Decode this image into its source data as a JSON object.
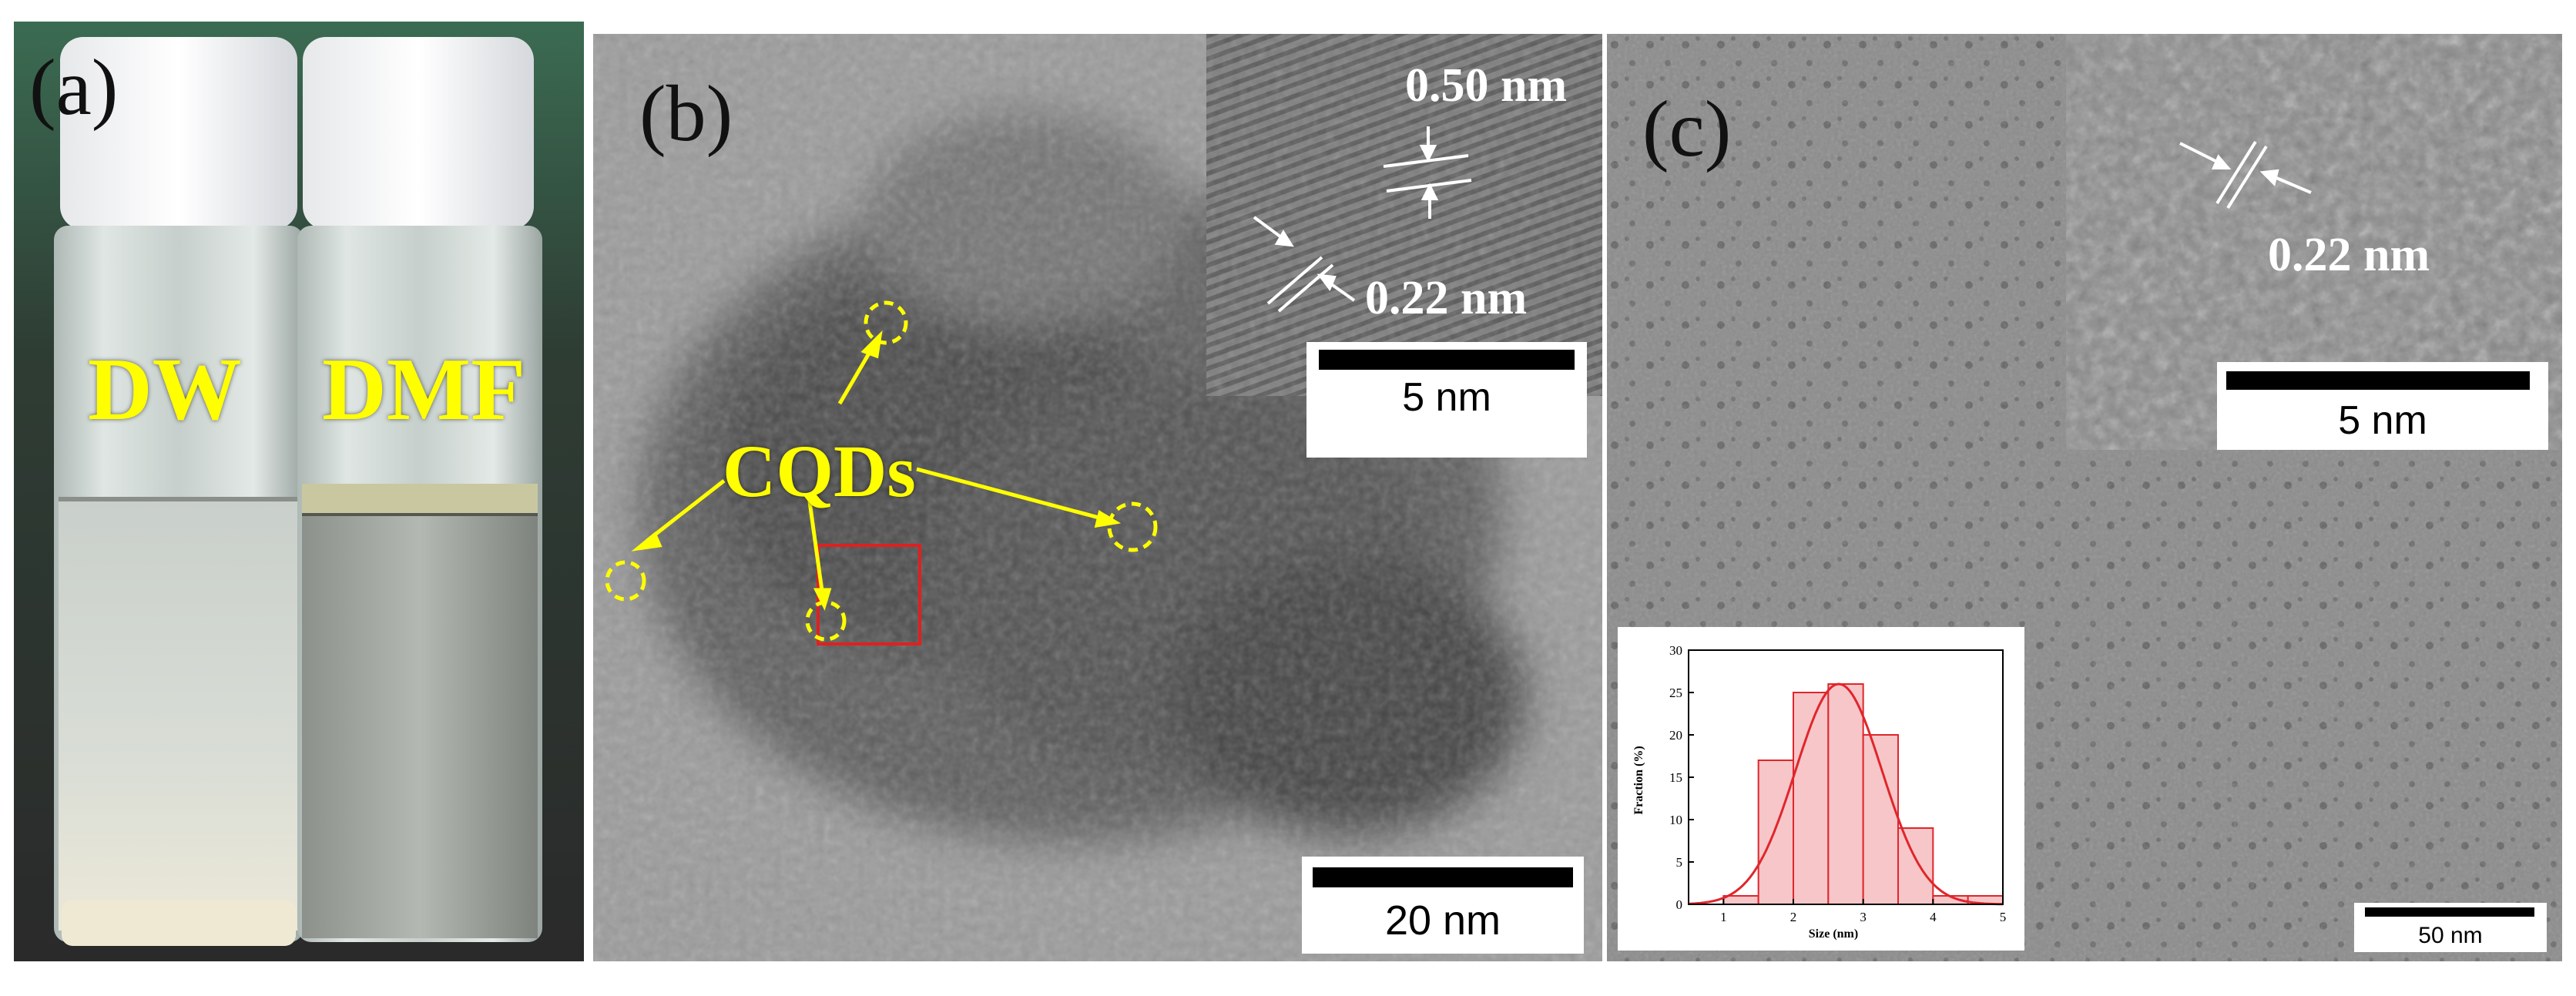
{
  "panel_a": {
    "label": "(a)",
    "vial_left": "DW",
    "vial_right": "DMF"
  },
  "panel_b": {
    "label": "(b)",
    "cqd_label": "CQDs",
    "inset_spacing_top": "0.50 nm",
    "inset_spacing_bottom": "0.22 nm",
    "inset_scalebar": "5 nm",
    "scalebar": "20 nm"
  },
  "panel_c": {
    "label": "(c)",
    "inset_spacing": "0.22 nm",
    "inset_scalebar": "5 nm",
    "scalebar": "50 nm"
  },
  "chart_data": {
    "type": "bar",
    "xlabel": "Size (nm)",
    "ylabel": "Fraction (%)",
    "xlim": [
      0.5,
      5
    ],
    "ylim": [
      0,
      30
    ],
    "xticks": [
      "1",
      "2",
      "3",
      "4",
      "5"
    ],
    "yticks": [
      "0",
      "5",
      "10",
      "15",
      "20",
      "25",
      "30"
    ],
    "bins": [
      {
        "x0": 1.0,
        "x1": 1.5,
        "value": 1
      },
      {
        "x0": 1.5,
        "x1": 2.0,
        "value": 17
      },
      {
        "x0": 2.0,
        "x1": 2.5,
        "value": 25
      },
      {
        "x0": 2.5,
        "x1": 3.0,
        "value": 26
      },
      {
        "x0": 3.0,
        "x1": 3.5,
        "value": 20
      },
      {
        "x0": 3.5,
        "x1": 4.0,
        "value": 9
      },
      {
        "x0": 4.0,
        "x1": 4.5,
        "value": 1
      },
      {
        "x0": 4.5,
        "x1": 5.0,
        "value": 1
      }
    ],
    "fit": {
      "type": "gaussian",
      "mean": 2.65,
      "sigma": 0.62,
      "amplitude": 26
    },
    "colors": {
      "bar_fill": "#f7c6c8",
      "bar_edge": "#e0262c",
      "fit_line": "#e0262c"
    }
  }
}
